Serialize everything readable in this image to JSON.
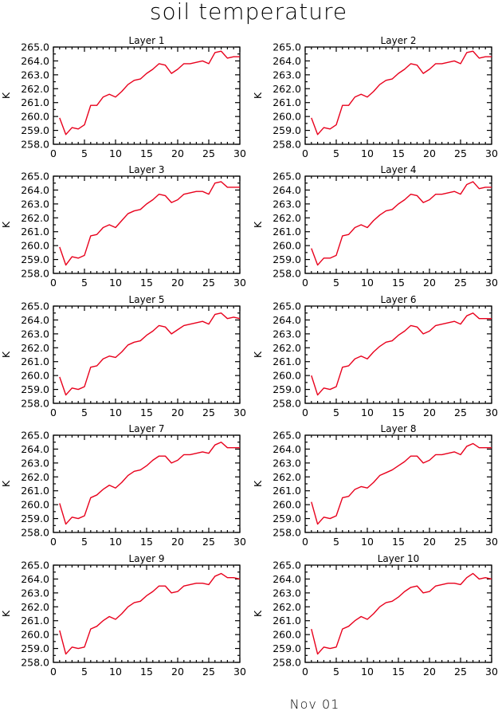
{
  "figure": {
    "title": "soil temperature",
    "footer": "Nov 01"
  },
  "colors": {
    "series": "#e8001c",
    "axis": "#000000"
  },
  "chart_data": [
    {
      "type": "line",
      "title": "Layer 1",
      "ylabel": "K",
      "xlabel": "",
      "xlim": [
        0,
        30
      ],
      "ylim": [
        258,
        265
      ],
      "xticks": [
        0,
        5,
        10,
        15,
        20,
        25,
        30
      ],
      "yticks": [
        258,
        259,
        260,
        261,
        262,
        263,
        264,
        265
      ],
      "ytick_labels": [
        "258.0",
        "259.0",
        "260.0",
        "261.0",
        "262.0",
        "263.0",
        "264.0",
        "265.0"
      ],
      "x": [
        1,
        2,
        3,
        4,
        5,
        6,
        7,
        8,
        9,
        10,
        11,
        12,
        13,
        14,
        15,
        16,
        17,
        18,
        19,
        20,
        21,
        22,
        23,
        24,
        25,
        26,
        27,
        28,
        29,
        30
      ],
      "series": [
        {
          "values": [
            259.9,
            258.7,
            259.2,
            259.1,
            259.4,
            260.8,
            260.8,
            261.4,
            261.6,
            261.4,
            261.8,
            262.3,
            262.6,
            262.7,
            263.1,
            263.4,
            263.8,
            263.7,
            263.1,
            263.4,
            263.8,
            263.8,
            263.9,
            264.0,
            263.8,
            264.6,
            264.7,
            264.2,
            264.3,
            264.3
          ]
        }
      ]
    },
    {
      "type": "line",
      "title": "Layer 2",
      "ylabel": "K",
      "xlabel": "",
      "xlim": [
        0,
        30
      ],
      "ylim": [
        258,
        265
      ],
      "xticks": [
        0,
        5,
        10,
        15,
        20,
        25,
        30
      ],
      "yticks": [
        258,
        259,
        260,
        261,
        262,
        263,
        264,
        265
      ],
      "ytick_labels": [
        "258.0",
        "259.0",
        "260.0",
        "261.0",
        "262.0",
        "263.0",
        "264.0",
        "265.0"
      ],
      "x": [
        1,
        2,
        3,
        4,
        5,
        6,
        7,
        8,
        9,
        10,
        11,
        12,
        13,
        14,
        15,
        16,
        17,
        18,
        19,
        20,
        21,
        22,
        23,
        24,
        25,
        26,
        27,
        28,
        29,
        30
      ],
      "series": [
        {
          "values": [
            259.9,
            258.7,
            259.2,
            259.1,
            259.4,
            260.8,
            260.8,
            261.4,
            261.6,
            261.4,
            261.8,
            262.3,
            262.6,
            262.7,
            263.1,
            263.4,
            263.8,
            263.7,
            263.1,
            263.4,
            263.8,
            263.8,
            263.9,
            264.0,
            263.8,
            264.6,
            264.7,
            264.2,
            264.3,
            264.3
          ]
        }
      ]
    },
    {
      "type": "line",
      "title": "Layer 3",
      "ylabel": "K",
      "xlabel": "",
      "xlim": [
        0,
        30
      ],
      "ylim": [
        258,
        265
      ],
      "xticks": [
        0,
        5,
        10,
        15,
        20,
        25,
        30
      ],
      "yticks": [
        258,
        259,
        260,
        261,
        262,
        263,
        264,
        265
      ],
      "ytick_labels": [
        "258.0",
        "259.0",
        "260.0",
        "261.0",
        "262.0",
        "263.0",
        "264.0",
        "265.0"
      ],
      "x": [
        1,
        2,
        3,
        4,
        5,
        6,
        7,
        8,
        9,
        10,
        11,
        12,
        13,
        14,
        15,
        16,
        17,
        18,
        19,
        20,
        21,
        22,
        23,
        24,
        25,
        26,
        27,
        28,
        29,
        30
      ],
      "series": [
        {
          "values": [
            259.9,
            258.6,
            259.2,
            259.1,
            259.3,
            260.7,
            260.8,
            261.3,
            261.5,
            261.3,
            261.8,
            262.3,
            262.5,
            262.6,
            263.0,
            263.3,
            263.7,
            263.6,
            263.1,
            263.3,
            263.7,
            263.8,
            263.9,
            263.9,
            263.7,
            264.5,
            264.6,
            264.2,
            264.2,
            264.2
          ]
        }
      ]
    },
    {
      "type": "line",
      "title": "Layer 4",
      "ylabel": "K",
      "xlabel": "",
      "xlim": [
        0,
        30
      ],
      "ylim": [
        258,
        265
      ],
      "xticks": [
        0,
        5,
        10,
        15,
        20,
        25,
        30
      ],
      "yticks": [
        258,
        259,
        260,
        261,
        262,
        263,
        264,
        265
      ],
      "ytick_labels": [
        "258.0",
        "259.0",
        "260.0",
        "261.0",
        "262.0",
        "263.0",
        "264.0",
        "265.0"
      ],
      "x": [
        1,
        2,
        3,
        4,
        5,
        6,
        7,
        8,
        9,
        10,
        11,
        12,
        13,
        14,
        15,
        16,
        17,
        18,
        19,
        20,
        21,
        22,
        23,
        24,
        25,
        26,
        27,
        28,
        29,
        30
      ],
      "series": [
        {
          "values": [
            259.8,
            258.6,
            259.1,
            259.1,
            259.3,
            260.7,
            260.8,
            261.3,
            261.5,
            261.3,
            261.8,
            262.2,
            262.5,
            262.6,
            263.0,
            263.3,
            263.7,
            263.6,
            263.1,
            263.3,
            263.7,
            263.7,
            263.8,
            263.9,
            263.7,
            264.4,
            264.6,
            264.1,
            264.2,
            264.2
          ]
        }
      ]
    },
    {
      "type": "line",
      "title": "Layer 5",
      "ylabel": "K",
      "xlabel": "",
      "xlim": [
        0,
        30
      ],
      "ylim": [
        258,
        265
      ],
      "xticks": [
        0,
        5,
        10,
        15,
        20,
        25,
        30
      ],
      "yticks": [
        258,
        259,
        260,
        261,
        262,
        263,
        264,
        265
      ],
      "ytick_labels": [
        "258.0",
        "259.0",
        "260.0",
        "261.0",
        "262.0",
        "263.0",
        "264.0",
        "265.0"
      ],
      "x": [
        1,
        2,
        3,
        4,
        5,
        6,
        7,
        8,
        9,
        10,
        11,
        12,
        13,
        14,
        15,
        16,
        17,
        18,
        19,
        20,
        21,
        22,
        23,
        24,
        25,
        26,
        27,
        28,
        29,
        30
      ],
      "series": [
        {
          "values": [
            259.9,
            258.6,
            259.1,
            259.0,
            259.2,
            260.6,
            260.7,
            261.2,
            261.4,
            261.3,
            261.7,
            262.2,
            262.4,
            262.5,
            262.9,
            263.2,
            263.6,
            263.5,
            263.0,
            263.3,
            263.6,
            263.7,
            263.8,
            263.9,
            263.7,
            264.4,
            264.5,
            264.1,
            264.2,
            264.1
          ]
        }
      ]
    },
    {
      "type": "line",
      "title": "Layer 6",
      "ylabel": "K",
      "xlabel": "",
      "xlim": [
        0,
        30
      ],
      "ylim": [
        258,
        265
      ],
      "xticks": [
        0,
        5,
        10,
        15,
        20,
        25,
        30
      ],
      "yticks": [
        258,
        259,
        260,
        261,
        262,
        263,
        264,
        265
      ],
      "ytick_labels": [
        "258.0",
        "259.0",
        "260.0",
        "261.0",
        "262.0",
        "263.0",
        "264.0",
        "265.0"
      ],
      "x": [
        1,
        2,
        3,
        4,
        5,
        6,
        7,
        8,
        9,
        10,
        11,
        12,
        13,
        14,
        15,
        16,
        17,
        18,
        19,
        20,
        21,
        22,
        23,
        24,
        25,
        26,
        27,
        28,
        29,
        30
      ],
      "series": [
        {
          "values": [
            260.0,
            258.6,
            259.1,
            259.0,
            259.2,
            260.6,
            260.7,
            261.2,
            261.4,
            261.2,
            261.7,
            262.1,
            262.4,
            262.5,
            262.9,
            263.2,
            263.6,
            263.5,
            263.0,
            263.2,
            263.6,
            263.7,
            263.8,
            263.9,
            263.7,
            264.3,
            264.5,
            264.1,
            264.1,
            264.1
          ]
        }
      ]
    },
    {
      "type": "line",
      "title": "Layer 7",
      "ylabel": "K",
      "xlabel": "",
      "xlim": [
        0,
        30
      ],
      "ylim": [
        258,
        265
      ],
      "xticks": [
        0,
        5,
        10,
        15,
        20,
        25,
        30
      ],
      "yticks": [
        258,
        259,
        260,
        261,
        262,
        263,
        264,
        265
      ],
      "ytick_labels": [
        "258.0",
        "259.0",
        "260.0",
        "261.0",
        "262.0",
        "263.0",
        "264.0",
        "265.0"
      ],
      "x": [
        1,
        2,
        3,
        4,
        5,
        6,
        7,
        8,
        9,
        10,
        11,
        12,
        13,
        14,
        15,
        16,
        17,
        18,
        19,
        20,
        21,
        22,
        23,
        24,
        25,
        26,
        27,
        28,
        29,
        30
      ],
      "series": [
        {
          "values": [
            260.1,
            258.6,
            259.1,
            259.0,
            259.2,
            260.5,
            260.7,
            261.1,
            261.4,
            261.2,
            261.6,
            262.1,
            262.4,
            262.5,
            262.8,
            263.2,
            263.5,
            263.5,
            263.0,
            263.2,
            263.6,
            263.6,
            263.7,
            263.8,
            263.7,
            264.3,
            264.5,
            264.1,
            264.1,
            264.1
          ]
        }
      ]
    },
    {
      "type": "line",
      "title": "Layer 8",
      "ylabel": "K",
      "xlabel": "",
      "xlim": [
        0,
        30
      ],
      "ylim": [
        258,
        265
      ],
      "xticks": [
        0,
        5,
        10,
        15,
        20,
        25,
        30
      ],
      "yticks": [
        258,
        259,
        260,
        261,
        262,
        263,
        264,
        265
      ],
      "ytick_labels": [
        "258.0",
        "259.0",
        "260.0",
        "261.0",
        "262.0",
        "263.0",
        "264.0",
        "265.0"
      ],
      "x": [
        1,
        2,
        3,
        4,
        5,
        6,
        7,
        8,
        9,
        10,
        11,
        12,
        13,
        14,
        15,
        16,
        17,
        18,
        19,
        20,
        21,
        22,
        23,
        24,
        25,
        26,
        27,
        28,
        29,
        30
      ],
      "series": [
        {
          "values": [
            260.2,
            258.6,
            259.1,
            259.0,
            259.2,
            260.5,
            260.6,
            261.1,
            261.3,
            261.2,
            261.6,
            262.1,
            262.3,
            262.5,
            262.8,
            263.1,
            263.5,
            263.5,
            263.0,
            263.2,
            263.6,
            263.6,
            263.7,
            263.8,
            263.6,
            264.2,
            264.4,
            264.1,
            264.1,
            264.1
          ]
        }
      ]
    },
    {
      "type": "line",
      "title": "Layer 9",
      "ylabel": "K",
      "xlabel": "",
      "xlim": [
        0,
        30
      ],
      "ylim": [
        258,
        265
      ],
      "xticks": [
        0,
        5,
        10,
        15,
        20,
        25,
        30
      ],
      "yticks": [
        258,
        259,
        260,
        261,
        262,
        263,
        264,
        265
      ],
      "ytick_labels": [
        "258.0",
        "259.0",
        "260.0",
        "261.0",
        "262.0",
        "263.0",
        "264.0",
        "265.0"
      ],
      "x": [
        1,
        2,
        3,
        4,
        5,
        6,
        7,
        8,
        9,
        10,
        11,
        12,
        13,
        14,
        15,
        16,
        17,
        18,
        19,
        20,
        21,
        22,
        23,
        24,
        25,
        26,
        27,
        28,
        29,
        30
      ],
      "series": [
        {
          "values": [
            260.3,
            258.6,
            259.1,
            259.0,
            259.1,
            260.4,
            260.6,
            261.0,
            261.3,
            261.1,
            261.5,
            262.0,
            262.3,
            262.4,
            262.8,
            263.1,
            263.5,
            263.5,
            263.0,
            263.1,
            263.5,
            263.6,
            263.7,
            263.7,
            263.6,
            264.2,
            264.4,
            264.1,
            264.1,
            264.0
          ]
        }
      ]
    },
    {
      "type": "line",
      "title": "Layer 10",
      "ylabel": "K",
      "xlabel": "",
      "xlim": [
        0,
        30
      ],
      "ylim": [
        258,
        265
      ],
      "xticks": [
        0,
        5,
        10,
        15,
        20,
        25,
        30
      ],
      "yticks": [
        258,
        259,
        260,
        261,
        262,
        263,
        264,
        265
      ],
      "ytick_labels": [
        "258.0",
        "259.0",
        "260.0",
        "261.0",
        "262.0",
        "263.0",
        "264.0",
        "265.0"
      ],
      "x": [
        1,
        2,
        3,
        4,
        5,
        6,
        7,
        8,
        9,
        10,
        11,
        12,
        13,
        14,
        15,
        16,
        17,
        18,
        19,
        20,
        21,
        22,
        23,
        24,
        25,
        26,
        27,
        28,
        29,
        30
      ],
      "series": [
        {
          "values": [
            260.4,
            258.6,
            259.1,
            259.0,
            259.1,
            260.4,
            260.6,
            261.0,
            261.3,
            261.1,
            261.5,
            262.0,
            262.3,
            262.4,
            262.7,
            263.1,
            263.4,
            263.5,
            263.0,
            263.1,
            263.5,
            263.6,
            263.7,
            263.7,
            263.6,
            264.1,
            264.4,
            264.0,
            264.1,
            264.0
          ]
        }
      ]
    }
  ]
}
